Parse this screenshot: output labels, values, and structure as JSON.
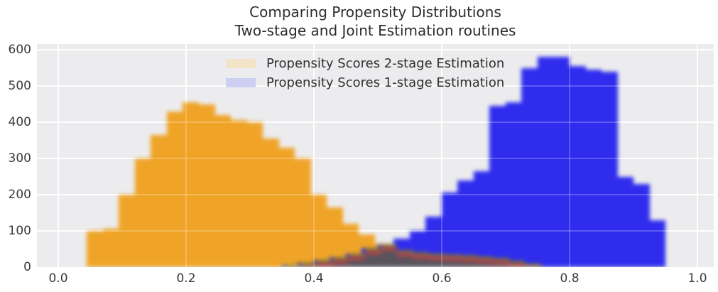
{
  "title": {
    "line1": "Comparing Propensity Distributions",
    "line2": "Two-stage and Joint Estimation routines"
  },
  "chart_data": {
    "type": "bar",
    "subtype": "overlaid-histogram",
    "title": "Comparing Propensity Distributions\nTwo-stage and Joint Estimation routines",
    "xlabel": "",
    "ylabel": "",
    "xlim": [
      0.0,
      1.0
    ],
    "ylim": [
      0,
      600
    ],
    "xticks": [
      "0.0",
      "0.2",
      "0.4",
      "0.6",
      "0.8",
      "1.0"
    ],
    "xtick_values": [
      0.0,
      0.2,
      0.4,
      0.6,
      0.8,
      1.0
    ],
    "yticks": [
      "0",
      "100",
      "200",
      "300",
      "400",
      "500",
      "600"
    ],
    "ytick_values": [
      0,
      100,
      200,
      300,
      400,
      500,
      600
    ],
    "grid": true,
    "legend_position": "upper center",
    "bin_width": 0.025,
    "series": [
      {
        "name": "Propensity Scores 2-stage Estimation",
        "color": "#efa427",
        "legend_swatch_color": "#f3e4c8",
        "bins": [
          [
            0.045,
            100
          ],
          [
            0.07,
            105
          ],
          [
            0.095,
            200
          ],
          [
            0.12,
            300
          ],
          [
            0.145,
            365
          ],
          [
            0.17,
            430
          ],
          [
            0.195,
            455
          ],
          [
            0.22,
            450
          ],
          [
            0.245,
            420
          ],
          [
            0.27,
            405
          ],
          [
            0.295,
            400
          ],
          [
            0.32,
            355
          ],
          [
            0.345,
            330
          ],
          [
            0.37,
            300
          ],
          [
            0.395,
            200
          ],
          [
            0.42,
            165
          ],
          [
            0.445,
            120
          ],
          [
            0.47,
            90
          ],
          [
            0.495,
            65
          ],
          [
            0.52,
            48
          ],
          [
            0.545,
            42
          ],
          [
            0.57,
            38
          ],
          [
            0.595,
            35
          ],
          [
            0.62,
            33
          ],
          [
            0.645,
            30
          ],
          [
            0.67,
            25
          ],
          [
            0.695,
            18
          ],
          [
            0.72,
            10
          ]
        ]
      },
      {
        "name": "Propensity Scores 1-stage Estimation",
        "color": "#2f2cee",
        "legend_swatch_color": "#cdcff2",
        "bins": [
          [
            0.35,
            6
          ],
          [
            0.375,
            12
          ],
          [
            0.4,
            20
          ],
          [
            0.425,
            28
          ],
          [
            0.45,
            38
          ],
          [
            0.475,
            52
          ],
          [
            0.5,
            62
          ],
          [
            0.525,
            78
          ],
          [
            0.55,
            100
          ],
          [
            0.575,
            140
          ],
          [
            0.6,
            205
          ],
          [
            0.625,
            240
          ],
          [
            0.65,
            265
          ],
          [
            0.675,
            445
          ],
          [
            0.7,
            455
          ],
          [
            0.725,
            550
          ],
          [
            0.75,
            580
          ],
          [
            0.775,
            580
          ],
          [
            0.8,
            555
          ],
          [
            0.825,
            545
          ],
          [
            0.85,
            540
          ],
          [
            0.875,
            250
          ],
          [
            0.9,
            230
          ],
          [
            0.925,
            130
          ]
        ]
      }
    ],
    "overlap": {
      "body_color": "#58545c",
      "edge_red_color": "#a2484e",
      "edge_olive_color": "#6e783c"
    },
    "plot_background": "#ececee",
    "grid_color": "#ffffff",
    "text_color": "#3a3a3a"
  }
}
